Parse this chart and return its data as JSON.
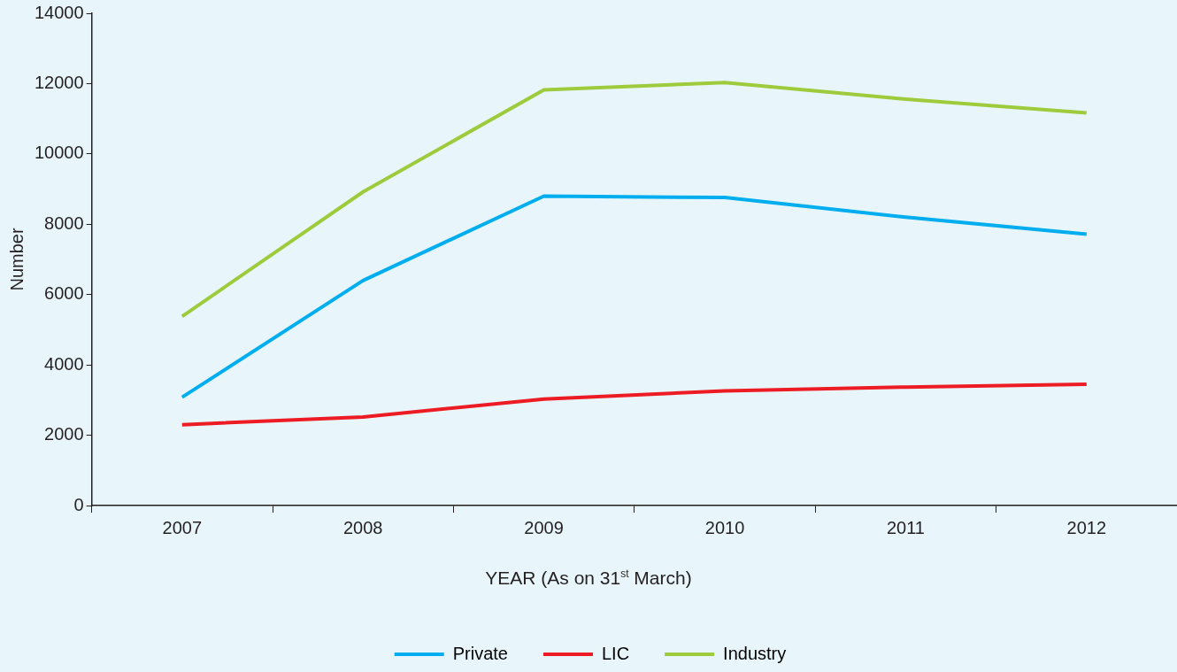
{
  "chart_data": {
    "type": "line",
    "xlabel": "YEAR (As on 31$^{st}$ March)",
    "ylabel": "Number",
    "categories": [
      "2007",
      "2008",
      "2009",
      "2010",
      "2011",
      "2012"
    ],
    "series": [
      {
        "name": "Private",
        "color": "#00aeef",
        "values": [
          3080,
          6400,
          8800,
          8760,
          8200,
          7720
        ]
      },
      {
        "name": "LIC",
        "color": "#ed1c24",
        "values": [
          2300,
          2520,
          3030,
          3260,
          3370,
          3450
        ]
      },
      {
        "name": "Industry",
        "color": "#9dcb3b",
        "values": [
          5380,
          8920,
          11820,
          12030,
          11560,
          11170
        ]
      }
    ],
    "ylim": [
      0,
      14000
    ],
    "yticks": [
      0,
      2000,
      4000,
      6000,
      8000,
      10000,
      12000,
      14000
    ],
    "grid": false,
    "legend": "bottom",
    "marker": "none",
    "line_style": "solid"
  }
}
